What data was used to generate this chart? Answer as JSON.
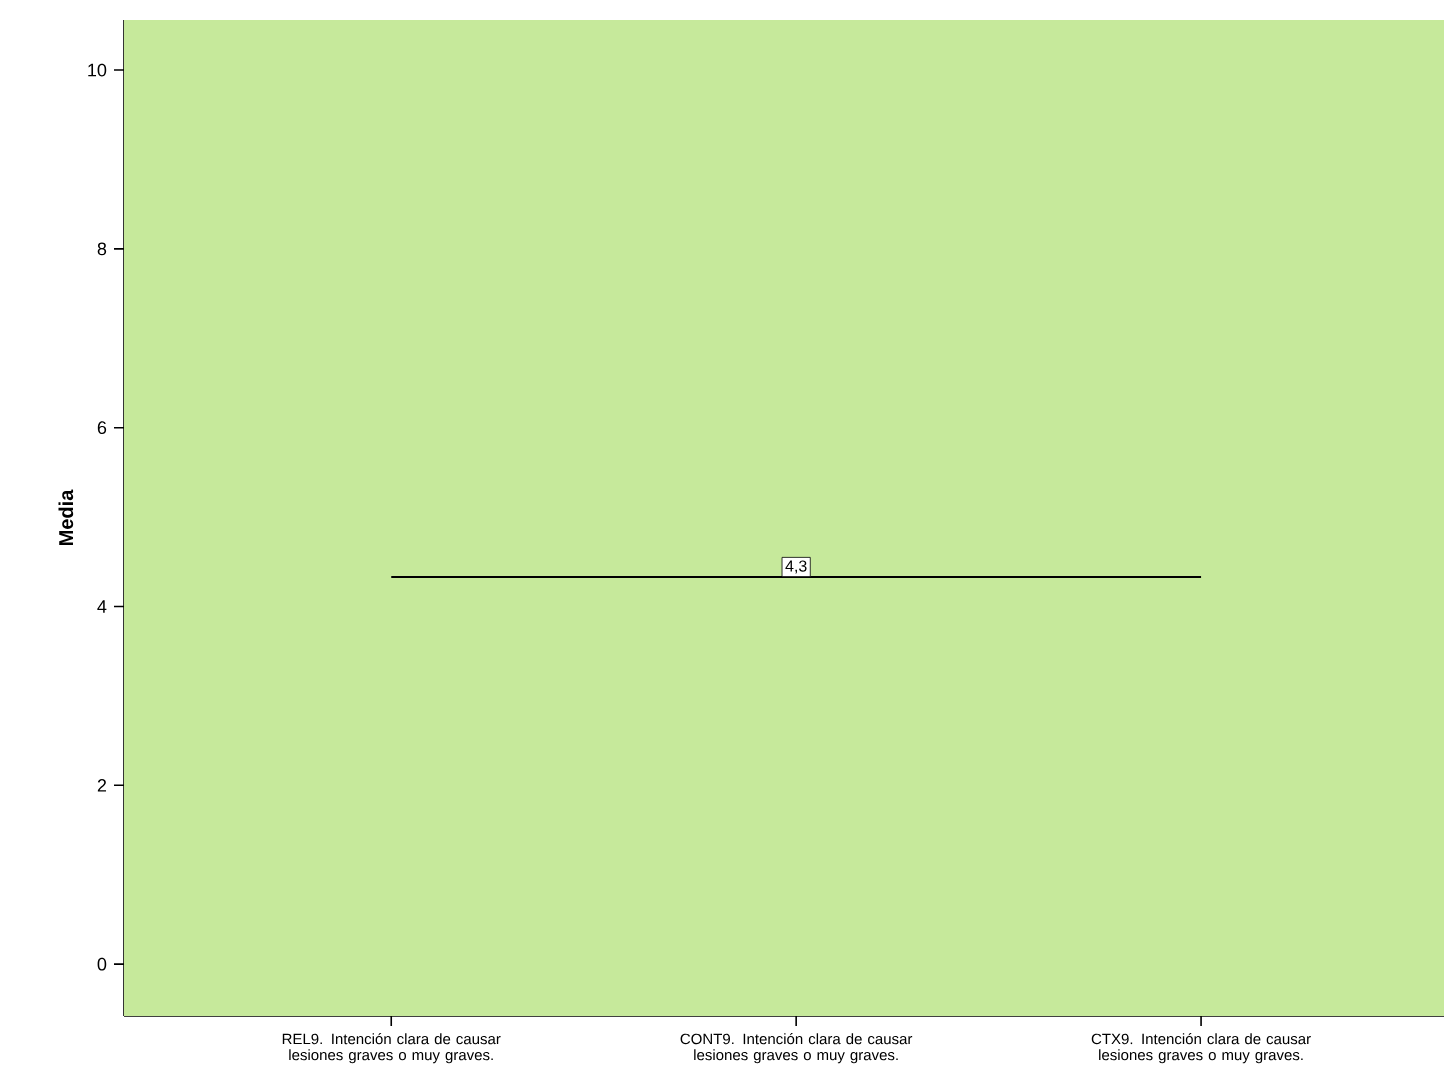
{
  "chart_data": {
    "type": "line",
    "ylabel": "Media",
    "categories": [
      "REL9. Intención clara de causar lesiones graves o muy graves.",
      "CONT9. Intención clara de causar lesiones graves o muy graves.",
      "CTX9. Intención clara de causar lesiones graves o muy graves."
    ],
    "series": [
      {
        "color": "#000000",
        "values": [
          4.33,
          4.33,
          4.33
        ],
        "value_labels": [
          null,
          "4,3",
          null
        ]
      }
    ],
    "ylim": [
      -0.58,
      10.56
    ],
    "yticks": [
      0,
      2,
      4,
      6,
      8,
      10
    ],
    "marker": "none",
    "line_style": "solid"
  }
}
